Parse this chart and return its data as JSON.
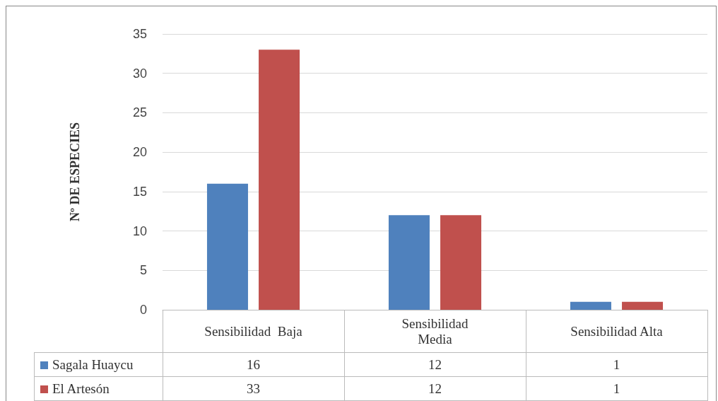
{
  "chart_data": {
    "type": "bar",
    "ylabel": "Nº DE ESPECIES",
    "categories": [
      "Sensibilidad  Baja",
      "Sensibilidad Media",
      "Sensibilidad Alta"
    ],
    "series": [
      {
        "name": "Sagala Huaycu",
        "color": "#4f81bd",
        "values": [
          16,
          12,
          1
        ]
      },
      {
        "name": "El Artesón",
        "color": "#c0504d",
        "values": [
          33,
          12,
          1
        ]
      }
    ],
    "ylim": [
      0,
      35
    ],
    "yticks": [
      0,
      5,
      10,
      15,
      20,
      25,
      30,
      35
    ],
    "grid": "y",
    "legend": "bottom left",
    "data_labels": true
  }
}
